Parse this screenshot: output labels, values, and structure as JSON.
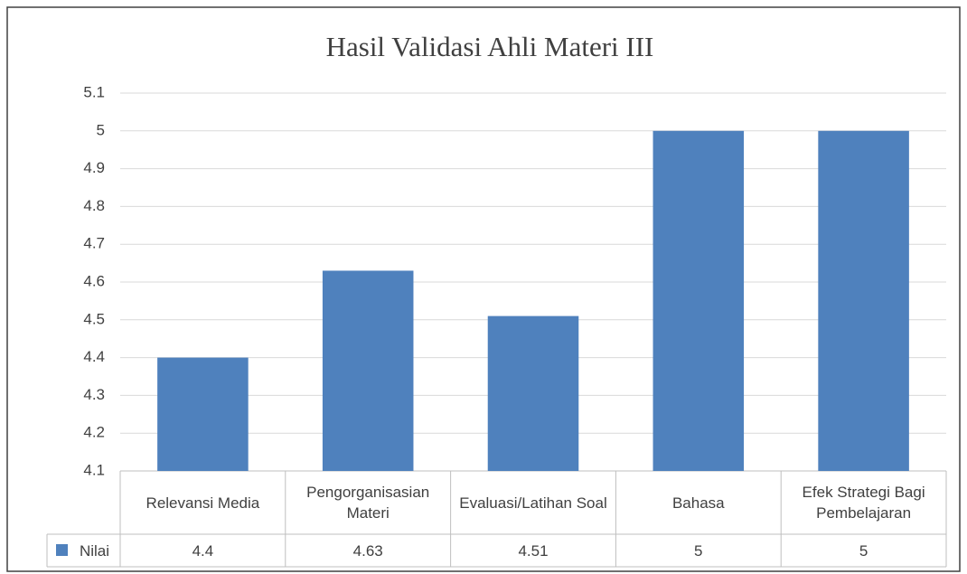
{
  "chart_data": {
    "type": "bar",
    "title": "Hasil Validasi Ahli Materi III",
    "categories": [
      "Relevansi Media",
      "Pengorganisasian Materi",
      "Evaluasi/Latihan Soal",
      "Bahasa",
      "Efek Strategi Bagi Pembelajaran"
    ],
    "series": [
      {
        "name": "Nilai",
        "color": "#4f81bd",
        "values": [
          4.4,
          4.63,
          4.51,
          5,
          5
        ]
      }
    ],
    "ylim": [
      4.1,
      5.1
    ],
    "yticks": [
      4.1,
      4.2,
      4.3,
      4.4,
      4.5,
      4.6,
      4.7,
      4.8,
      4.9,
      5,
      5.1
    ],
    "grid": true
  }
}
